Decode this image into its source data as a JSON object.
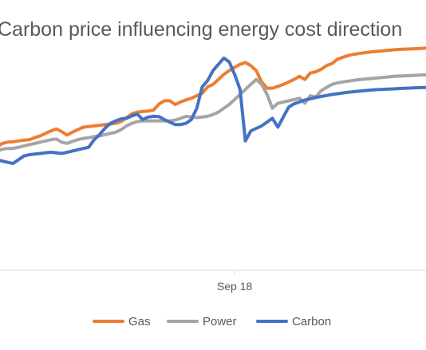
{
  "chart_data": {
    "type": "line",
    "title": "Carbon price influencing energy cost direction",
    "xlabel": "",
    "ylabel": "",
    "xlim": [
      0,
      80
    ],
    "ylim": [
      0,
      100
    ],
    "x_ticks": [
      {
        "position": 44,
        "label": "Sep 18"
      }
    ],
    "grid": false,
    "legend": "bottom",
    "x": [
      0,
      1,
      2,
      3,
      4,
      5,
      6,
      7,
      8,
      9,
      10,
      11,
      12,
      13,
      14,
      15,
      16,
      17,
      18,
      19,
      20,
      21,
      22,
      23,
      24,
      25,
      26,
      27,
      28,
      29,
      30,
      31,
      32,
      33,
      34,
      35,
      36,
      37,
      38,
      39,
      40,
      41,
      42,
      43,
      44,
      45,
      46,
      47,
      48,
      49,
      50,
      51,
      52,
      53,
      54,
      55,
      56,
      57,
      58,
      59,
      60,
      61,
      62,
      63,
      64,
      65,
      66,
      67,
      68,
      69,
      70,
      71,
      72,
      73,
      74,
      75,
      76,
      77,
      78,
      79,
      80
    ],
    "series": [
      {
        "name": "Gas",
        "color": "#ED7D31",
        "values": [
          49.0,
          50.5,
          51.0,
          51.2,
          51.5,
          51.8,
          52.0,
          52.8,
          53.5,
          54.5,
          55.5,
          56.3,
          55.2,
          53.8,
          55.0,
          56.0,
          57.0,
          57.2,
          57.5,
          57.7,
          58.0,
          58.2,
          58.5,
          59.2,
          60.8,
          62.3,
          63.0,
          63.2,
          63.4,
          63.8,
          66.2,
          67.5,
          67.5,
          66.0,
          67.0,
          67.8,
          68.5,
          69.5,
          70.5,
          73.0,
          74.0,
          76.0,
          78.0,
          79.5,
          80.8,
          82.0,
          82.7,
          81.5,
          79.5,
          75.0,
          72.5,
          72.5,
          73.2,
          74.0,
          75.0,
          76.0,
          77.2,
          76.0,
          78.5,
          79.0,
          80.0,
          81.5,
          82.3,
          84.0,
          84.8,
          85.5,
          86.0,
          86.3,
          86.6,
          86.9,
          87.1,
          87.3,
          87.5,
          87.7,
          87.9,
          88.0,
          88.1,
          88.2,
          88.3,
          88.4,
          88.5
        ]
      },
      {
        "name": "Power",
        "color": "#A5A5A5",
        "values": [
          47.5,
          48.2,
          48.5,
          48.5,
          49.0,
          49.5,
          50.0,
          50.5,
          51.0,
          51.5,
          52.0,
          52.3,
          51.0,
          50.5,
          51.3,
          52.0,
          52.5,
          52.8,
          53.2,
          53.5,
          54.0,
          54.5,
          55.0,
          56.0,
          57.5,
          58.5,
          59.2,
          59.5,
          59.5,
          59.5,
          59.5,
          59.5,
          59.5,
          59.8,
          60.5,
          61.3,
          61.0,
          60.8,
          61.0,
          61.3,
          62.0,
          63.0,
          64.5,
          66.0,
          68.0,
          70.0,
          72.0,
          74.0,
          76.0,
          74.0,
          70.0,
          64.5,
          66.5,
          67.0,
          67.5,
          68.0,
          68.5,
          66.5,
          69.5,
          69.0,
          71.5,
          72.8,
          74.0,
          74.6,
          75.0,
          75.3,
          75.6,
          75.9,
          76.1,
          76.3,
          76.5,
          76.7,
          76.9,
          77.1,
          77.3,
          77.4,
          77.5,
          77.6,
          77.7,
          77.8,
          77.9
        ]
      },
      {
        "name": "Carbon",
        "color": "#4472C4",
        "values": [
          44.0,
          43.5,
          43.0,
          42.5,
          44.0,
          45.5,
          46.0,
          46.3,
          46.5,
          46.8,
          47.0,
          46.8,
          46.5,
          47.0,
          47.5,
          48.0,
          48.5,
          49.0,
          52.0,
          54.0,
          56.5,
          58.5,
          59.5,
          60.3,
          60.5,
          61.5,
          62.2,
          60.0,
          61.0,
          61.3,
          61.2,
          60.0,
          59.0,
          58.0,
          58.0,
          58.5,
          60.0,
          64.5,
          73.0,
          75.5,
          79.5,
          82.0,
          84.5,
          83.0,
          78.0,
          72.0,
          51.5,
          55.5,
          56.5,
          57.5,
          59.0,
          60.5,
          57.0,
          61.0,
          65.0,
          66.3,
          67.0,
          67.8,
          68.3,
          68.8,
          69.2,
          69.6,
          70.0,
          70.3,
          70.6,
          70.9,
          71.1,
          71.3,
          71.5,
          71.7,
          71.9,
          72.0,
          72.1,
          72.2,
          72.3,
          72.4,
          72.5,
          72.6,
          72.7,
          72.8,
          72.9
        ]
      }
    ]
  }
}
